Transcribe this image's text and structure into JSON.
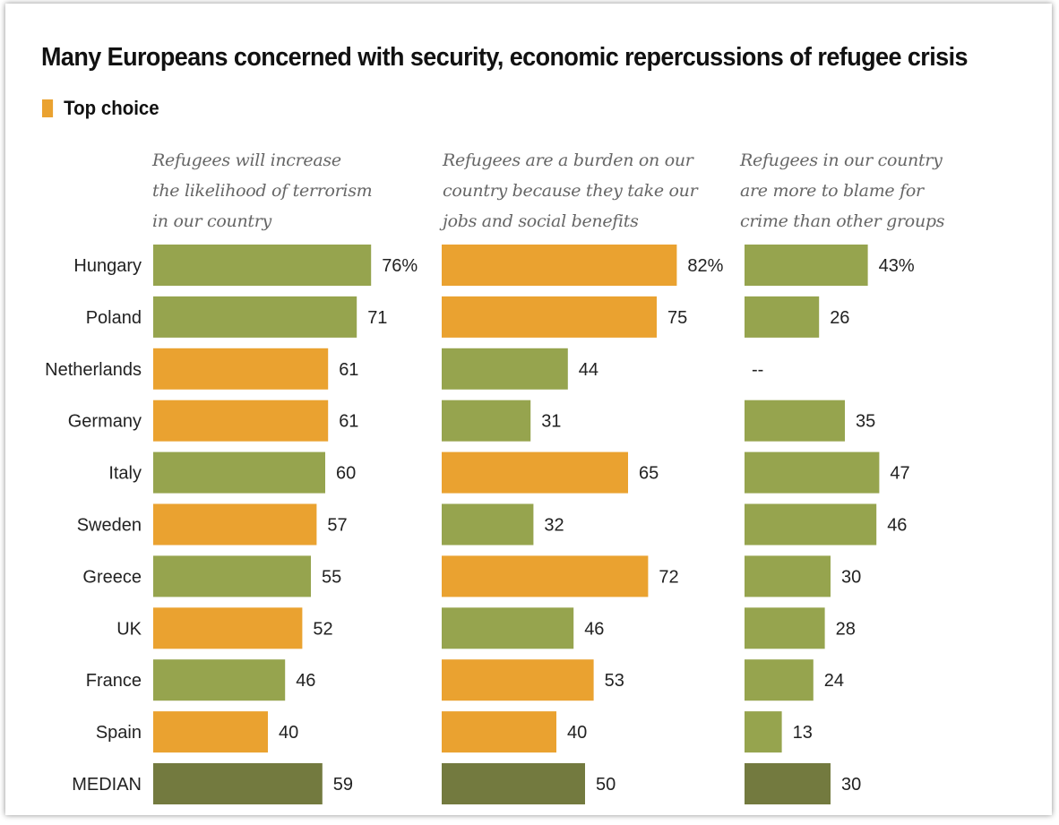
{
  "title": "Many Europeans concerned with security, economic repercussions of refugee crisis",
  "legend": {
    "label": "Top choice",
    "color": "#eaa230"
  },
  "chart_data": [
    {
      "type": "bar",
      "orientation": "horizontal",
      "title": "Refugees will increase\nthe likelihood of terrorism\nin our country",
      "categories": [
        "Hungary",
        "Poland",
        "Netherlands",
        "Germany",
        "Italy",
        "Sweden",
        "Greece",
        "UK",
        "France",
        "Spain",
        "MEDIAN"
      ],
      "values": [
        76,
        71,
        61,
        61,
        60,
        57,
        55,
        52,
        46,
        40,
        59
      ],
      "labels": [
        "76%",
        "71",
        "61",
        "61",
        "60",
        "57",
        "55",
        "52",
        "46",
        "40",
        "59"
      ],
      "top_choice": [
        false,
        false,
        true,
        true,
        false,
        true,
        false,
        true,
        false,
        true,
        false
      ],
      "unit": "%"
    },
    {
      "type": "bar",
      "orientation": "horizontal",
      "title": "Refugees are a burden on our\ncountry because they take our\njobs and social benefits",
      "categories": [
        "Hungary",
        "Poland",
        "Netherlands",
        "Germany",
        "Italy",
        "Sweden",
        "Greece",
        "UK",
        "France",
        "Spain",
        "MEDIAN"
      ],
      "values": [
        82,
        75,
        44,
        31,
        65,
        32,
        72,
        46,
        53,
        40,
        50
      ],
      "labels": [
        "82%",
        "75",
        "44",
        "31",
        "65",
        "32",
        "72",
        "46",
        "53",
        "40",
        "50"
      ],
      "top_choice": [
        true,
        true,
        false,
        false,
        true,
        false,
        true,
        false,
        true,
        true,
        false
      ],
      "unit": "%"
    },
    {
      "type": "bar",
      "orientation": "horizontal",
      "title": "Refugees in our country\nare more to blame for\ncrime than other groups",
      "categories": [
        "Hungary",
        "Poland",
        "Netherlands",
        "Germany",
        "Italy",
        "Sweden",
        "Greece",
        "UK",
        "France",
        "Spain",
        "MEDIAN"
      ],
      "values": [
        43,
        26,
        null,
        35,
        47,
        46,
        30,
        28,
        24,
        13,
        30
      ],
      "labels": [
        "43%",
        "26",
        "--",
        "35",
        "47",
        "46",
        "30",
        "28",
        "24",
        "13",
        "30"
      ],
      "top_choice": [
        false,
        false,
        false,
        false,
        false,
        false,
        false,
        false,
        false,
        false,
        false
      ],
      "unit": "%"
    }
  ],
  "colors": {
    "top_choice": "#eaa230",
    "other": "#96a44e",
    "median": "#737a3f"
  }
}
